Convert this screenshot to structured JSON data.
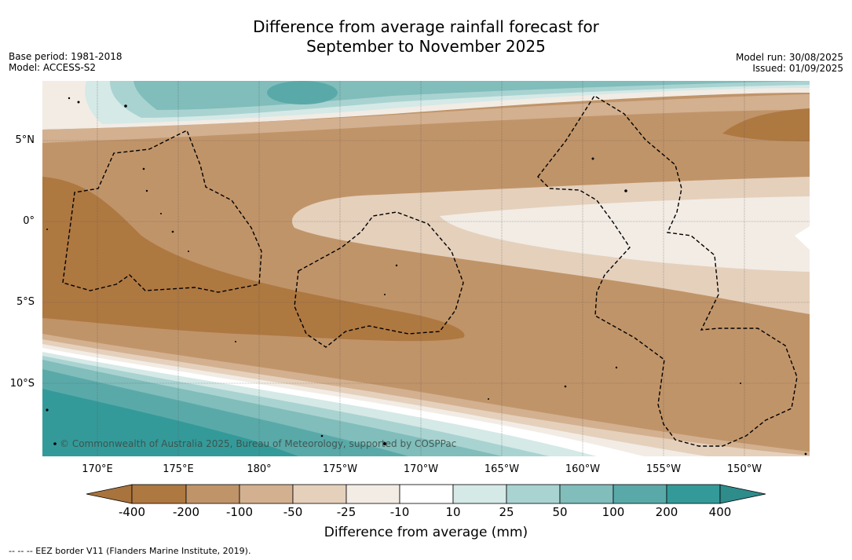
{
  "title_line1": "Difference from average rainfall forecast for",
  "title_line2": "September to November 2025",
  "base_period": "Base period: 1981-2018",
  "model": "Model: ACCESS-S2",
  "model_run": "Model run: 30/08/2025",
  "issued": "Issued: 01/09/2025",
  "latitude_labels": [
    "5°N",
    "0°",
    "5°S",
    "10°S"
  ],
  "longitude_labels": [
    "170°E",
    "175°E",
    "180°",
    "175°W",
    "170°W",
    "165°W",
    "160°W",
    "155°W",
    "150°W"
  ],
  "colorbar": {
    "ticks": [
      "-400",
      "-200",
      "-100",
      "-50",
      "-25",
      "-10",
      "10",
      "25",
      "50",
      "100",
      "200",
      "400"
    ],
    "colors": [
      "#a8733c",
      "#ae7841",
      "#c09469",
      "#d3b08f",
      "#e5d0bc",
      "#f2ece5",
      "#ffffff",
      "#d5e9e7",
      "#a9d3d1",
      "#80bdbb",
      "#5aa9a9",
      "#349a99",
      "#2e8c8b"
    ],
    "label": "Difference from average (mm)"
  },
  "copyright": "© Commonwealth of Australia 2025, Bureau of Meteorology, supported by COSPPac",
  "footnote": "--  --  -- EEZ border V11 (Flanders Marine Institute, 2019)."
}
